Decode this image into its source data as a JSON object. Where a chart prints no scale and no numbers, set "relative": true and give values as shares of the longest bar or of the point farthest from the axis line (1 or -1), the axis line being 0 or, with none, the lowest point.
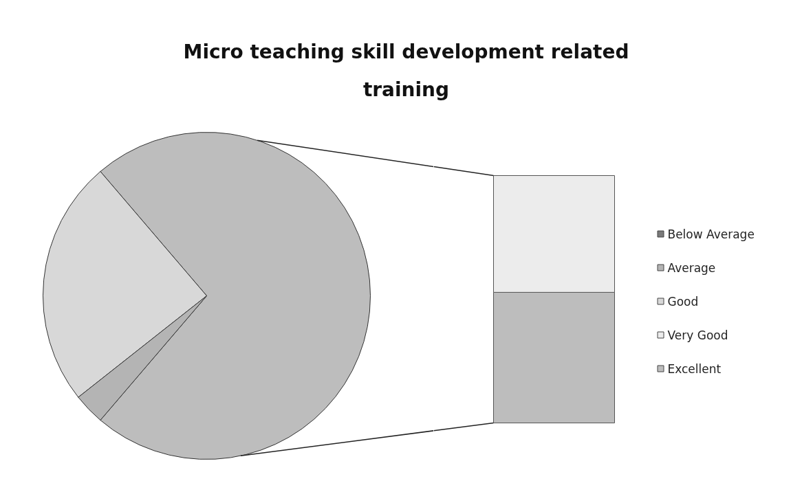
{
  "chart_data": [
    {
      "type": "pie",
      "title": "Micro teaching skill development related training",
      "categories": [
        "Below Average",
        "Average",
        "Good",
        null
      ],
      "values": [
        0,
        3.1,
        24.4,
        72.5
      ],
      "colors": [
        "#7a7a7a",
        "#b4b4b4",
        "#d8d8d8",
        "#bdbdbd"
      ],
      "legend": "right"
    },
    {
      "type": "bar",
      "stacked": true,
      "relative": true,
      "categories": [
        null
      ],
      "legend": "right",
      "series": [
        {
          "name": "Excellent",
          "color": "#bdbdbd",
          "values": [
            0.528
          ]
        },
        {
          "name": "Very Good",
          "color": "#ececec",
          "values": [
            0.472
          ]
        }
      ]
    }
  ]
}
